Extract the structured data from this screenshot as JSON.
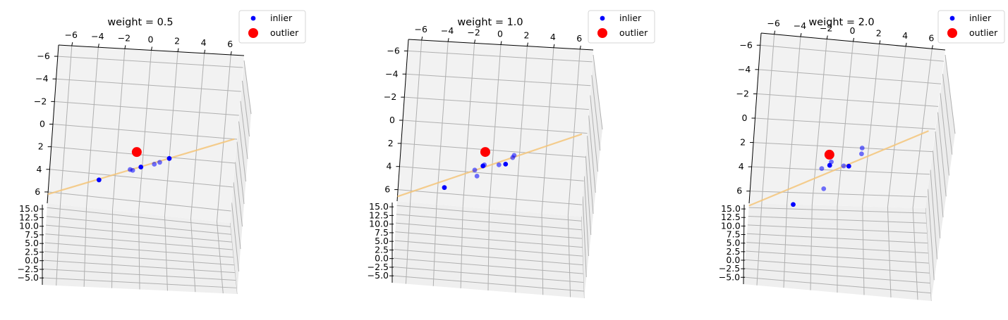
{
  "figure": {
    "background": "#ffffff",
    "pane_color": "#f2f2f2",
    "grid_color": "#b0b0b0",
    "fit_line_color": "#f5c67a",
    "inlier_color": "#0000ff",
    "outlier_color": "#ff0000"
  },
  "chart_data": [
    {
      "type": "scatter",
      "projection": "3d",
      "title": "weight = 0.5",
      "legend": {
        "placement": "top-right",
        "entries": [
          "inlier",
          "outlier"
        ]
      },
      "x_ticks": [
        "−6",
        "−4",
        "−2",
        "0",
        "2",
        "4",
        "6"
      ],
      "y_ticks": [
        "−6",
        "−4",
        "−2",
        "0",
        "2",
        "4",
        "6"
      ],
      "z_ticks": [
        "−5.0",
        "−2.5",
        "0.0",
        "2.5",
        "5.0",
        "7.5",
        "10.0",
        "12.5",
        "15.0"
      ],
      "xlim": [
        -7,
        7
      ],
      "ylim": [
        -7,
        7
      ],
      "zlim": [
        -5,
        15
      ],
      "grid": true,
      "series": [
        {
          "name": "inlier",
          "points": [
            [
              -3.2,
              4.5
            ],
            [
              -0.7,
              3.4
            ],
            [
              -0.9,
              3.35
            ],
            [
              -0.1,
              3.05
            ],
            [
              0.9,
              2.7
            ],
            [
              1.3,
              2.5
            ],
            [
              2.0,
              2.1
            ]
          ]
        },
        {
          "name": "outlier",
          "points": [
            [
              -0.5,
              1.8
            ]
          ]
        }
      ],
      "fit_line": [
        [
          -7.0,
          6.2
        ],
        [
          6.8,
          0.0
        ]
      ]
    },
    {
      "type": "scatter",
      "projection": "3d",
      "title": "weight = 1.0",
      "legend": {
        "placement": "top-right",
        "entries": [
          "inlier",
          "outlier"
        ]
      },
      "x_ticks": [
        "−6",
        "−4",
        "−2",
        "0",
        "2",
        "4",
        "6"
      ],
      "y_ticks": [
        "−6",
        "−4",
        "−2",
        "0",
        "2",
        "4",
        "6"
      ],
      "z_ticks": [
        "−5.0",
        "−2.5",
        "0.0",
        "2.5",
        "5.0",
        "7.5",
        "10.0",
        "12.5",
        "15.0"
      ],
      "xlim": [
        -7,
        7
      ],
      "ylim": [
        -7,
        7
      ],
      "zlim": [
        -5,
        15
      ],
      "grid": true,
      "series": [
        {
          "name": "inlier",
          "points": [
            [
              -3.5,
              5.5
            ],
            [
              -1.1,
              4.3
            ],
            [
              -1.3,
              3.8
            ],
            [
              -0.7,
              3.4
            ],
            [
              -0.6,
              3.3
            ],
            [
              0.5,
              3.2
            ],
            [
              1.0,
              3.1
            ],
            [
              1.5,
              2.5
            ],
            [
              1.6,
              2.3
            ]
          ]
        },
        {
          "name": "outlier",
          "points": [
            [
              -0.6,
              2.2
            ]
          ]
        }
      ],
      "fit_line": [
        [
          -7.0,
          6.6
        ],
        [
          6.6,
          0.1
        ]
      ]
    },
    {
      "type": "scatter",
      "projection": "3d",
      "title": "weight = 2.0",
      "legend": {
        "placement": "top-right",
        "entries": [
          "inlier",
          "outlier"
        ]
      },
      "x_ticks": [
        "−6",
        "−4",
        "−2",
        "0",
        "2",
        "4",
        "6"
      ],
      "y_ticks": [
        "−6",
        "−4",
        "−2",
        "0",
        "2",
        "4",
        "6"
      ],
      "z_ticks": [
        "−5.0",
        "−2.5",
        "0.0",
        "2.5",
        "5.0",
        "7.5",
        "10.0",
        "12.5",
        "15.0"
      ],
      "xlim": [
        -7,
        7
      ],
      "ylim": [
        -7,
        7
      ],
      "zlim": [
        -5,
        15
      ],
      "grid": true,
      "series": [
        {
          "name": "inlier",
          "points": [
            [
              -3.5,
              7.0
            ],
            [
              -1.2,
              5.6
            ],
            [
              -1.5,
              3.9
            ],
            [
              -0.9,
              3.6
            ],
            [
              -0.8,
              3.3
            ],
            [
              0.2,
              3.6
            ],
            [
              0.6,
              3.6
            ],
            [
              1.5,
              2.5
            ],
            [
              1.5,
              2.0
            ]
          ]
        },
        {
          "name": "outlier",
          "points": [
            [
              -1.0,
              2.7
            ]
          ]
        }
      ],
      "fit_line": [
        [
          -7.0,
          7.2
        ],
        [
          6.5,
          0.2
        ]
      ]
    }
  ]
}
